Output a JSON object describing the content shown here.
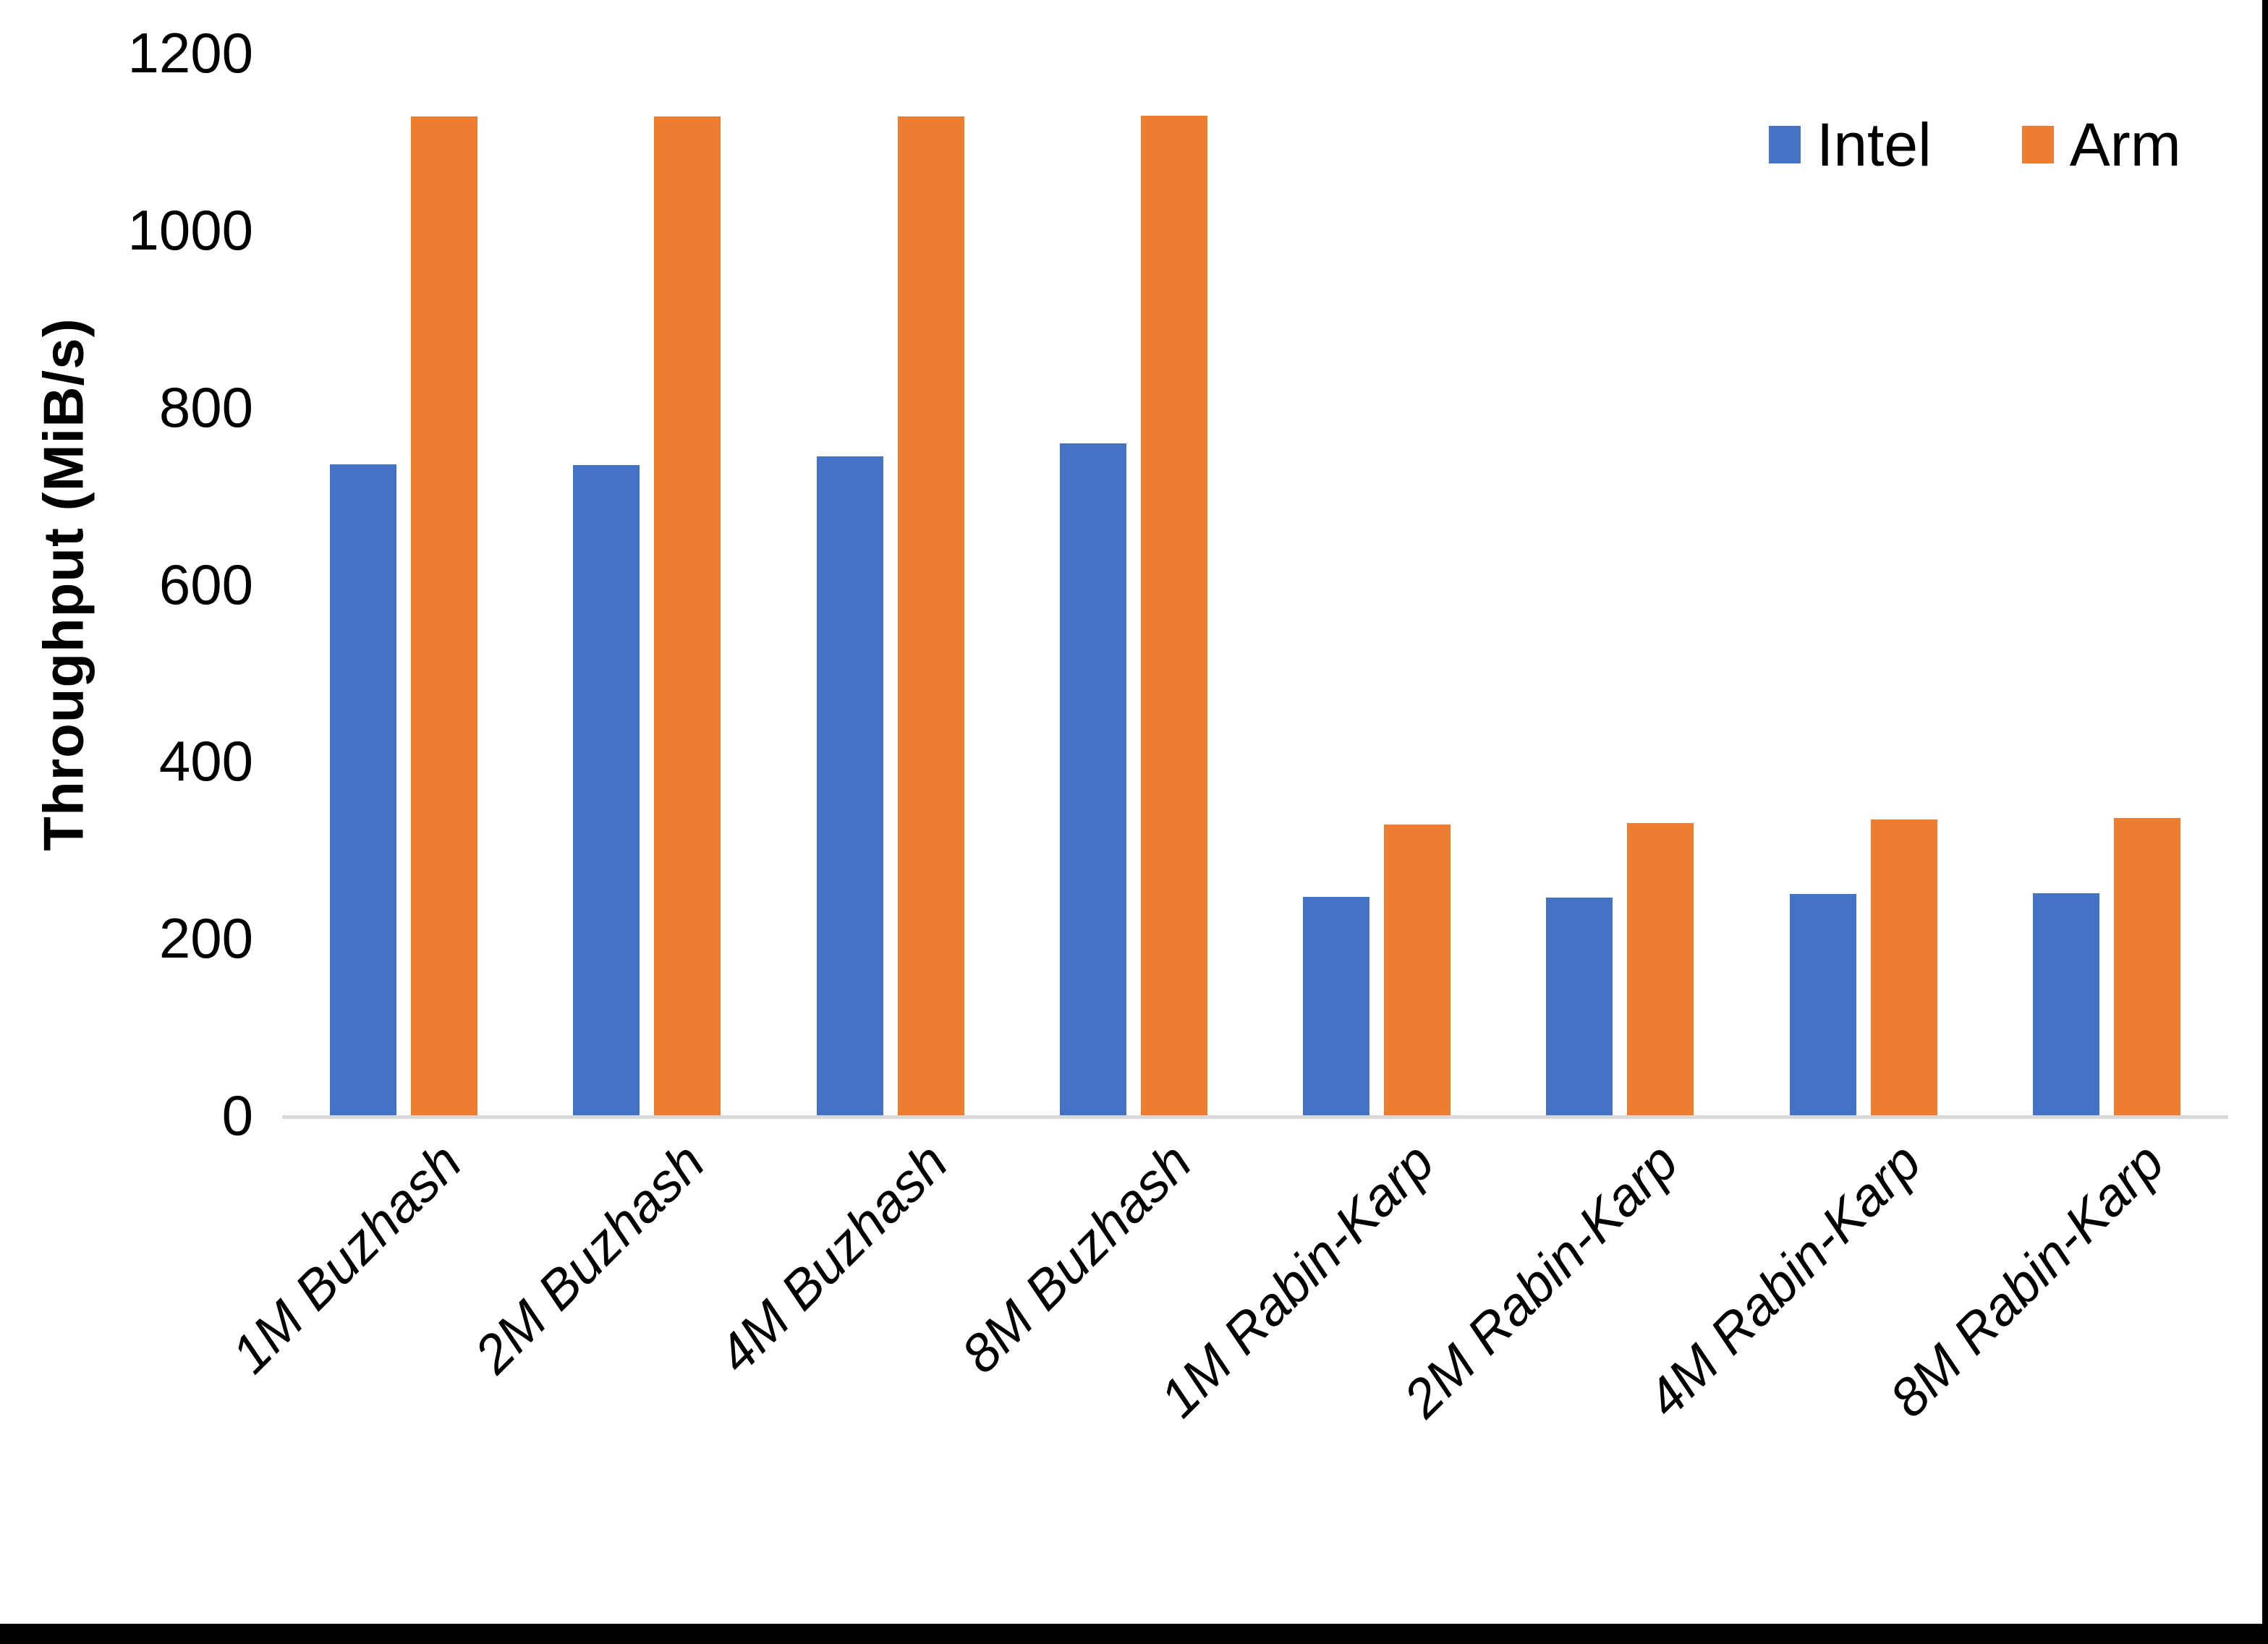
{
  "chart_data": {
    "type": "bar",
    "title": "",
    "xlabel": "",
    "ylabel": "Throughput (MiB/s)",
    "ylim": [
      0,
      1200
    ],
    "yticks": [
      0,
      200,
      400,
      600,
      800,
      1000,
      1200
    ],
    "grid": false,
    "legend_position": "top-right",
    "categories": [
      "1M Buzhash",
      "2M Buzhash",
      "4M Buzhash",
      "8M Buzhash",
      "1M Rabin-Karp",
      "2M Rabin-Karp",
      "4M Rabin-Karp",
      "8M Rabin-Karp"
    ],
    "series": [
      {
        "name": "Intel",
        "color": "#4472C4",
        "values": [
          735,
          734,
          744,
          759,
          247,
          246,
          250,
          251
        ]
      },
      {
        "name": "Arm",
        "color": "#ED7D31",
        "values": [
          1128,
          1128,
          1128,
          1129,
          328,
          330,
          334,
          336
        ]
      }
    ]
  },
  "colors": {
    "axis_line": "#D9D9D9",
    "text": "#000000",
    "background": "#FFFFFF",
    "frame_edge": "#000000"
  }
}
